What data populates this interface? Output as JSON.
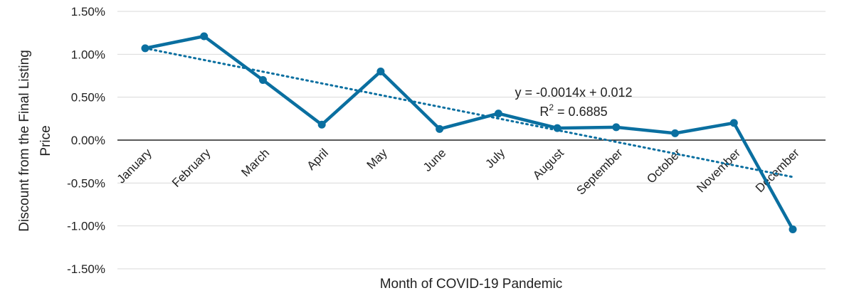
{
  "chart_data": {
    "type": "line",
    "categories": [
      "January",
      "February",
      "March",
      "April",
      "May",
      "June",
      "July",
      "August",
      "September",
      "October",
      "November",
      "December"
    ],
    "series": [
      {
        "values": [
          1.07,
          1.21,
          0.7,
          0.18,
          0.8,
          0.13,
          0.31,
          0.14,
          0.15,
          0.08,
          0.2,
          -1.04
        ],
        "color": "#0a6fa0"
      }
    ],
    "trendline": {
      "type": "linear",
      "style": "dotted",
      "color": "#0a6fa0",
      "start": 1.07,
      "end": -0.43,
      "equation_prefix": "y = -0.0014x + 0.012",
      "r2_label_base": "R",
      "r2_label_exp": "2",
      "r2_value": " = 0.6885"
    },
    "yticks": [
      1.5,
      1.0,
      0.5,
      0.0,
      -0.5,
      -1.0,
      -1.5
    ],
    "ytick_labels": [
      "1.50%",
      "1.00%",
      "0.50%",
      "0.00%",
      "-0.50%",
      "-1.00%",
      "-1.50%"
    ],
    "ylim": [
      -1.5,
      1.5
    ],
    "xlabel": "Month of COVID-19 Pandemic",
    "ylabel_line1": "Discount from the Final Listing",
    "ylabel_line2": "Price",
    "grid": true,
    "zero_line": true,
    "legend": "none"
  }
}
